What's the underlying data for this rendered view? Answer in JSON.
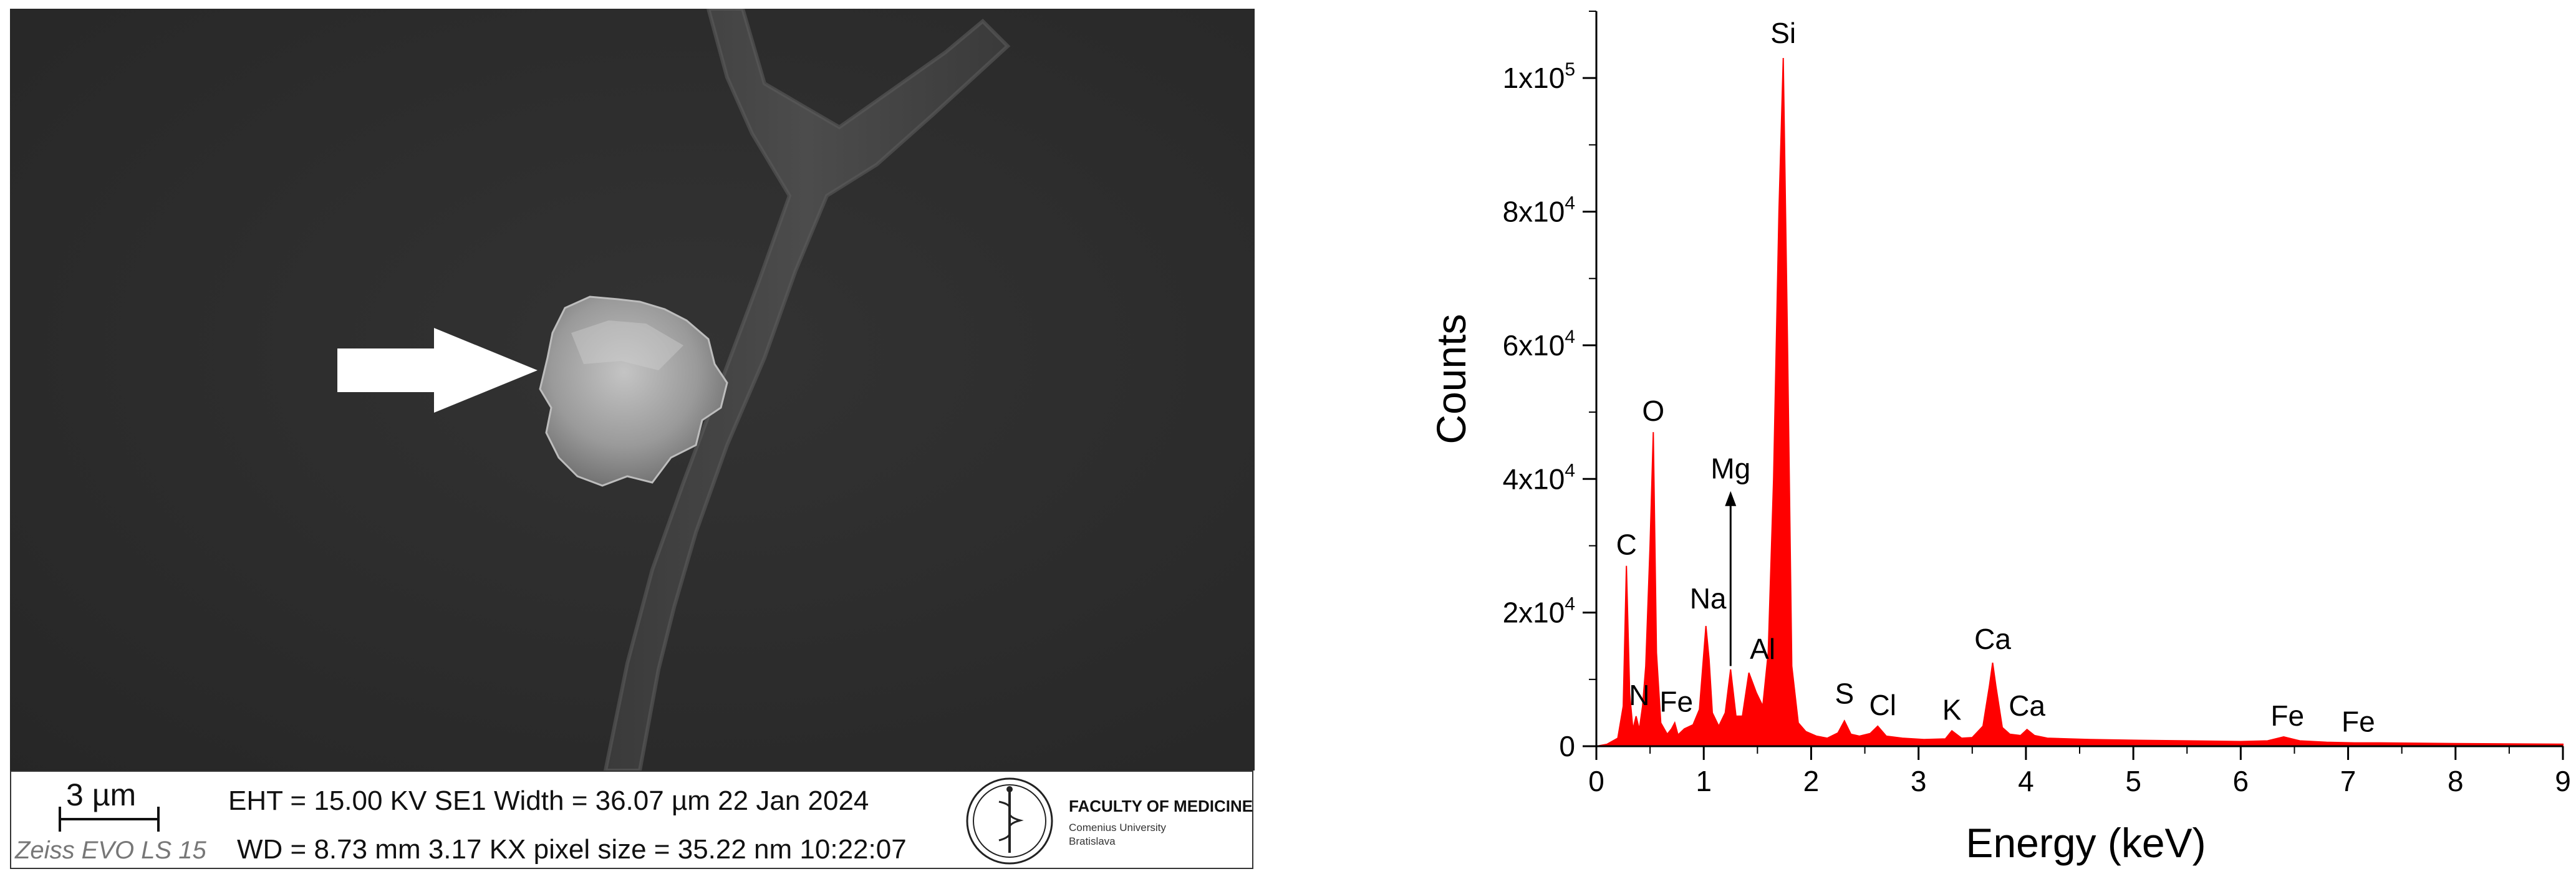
{
  "sem": {
    "scale_bar_label": "3 µm",
    "instrument": "Zeiss EVO LS 15",
    "info_line_1": "EHT = 15.00 KV   SE1  Width = 36.07 µm  22 Jan 2024",
    "info_line_2": "WD = 8.73 mm 3.17 KX pixel size = 35.22 nm 10:22:07",
    "faculty": "FACULTY OF MEDICINE",
    "faculty_sub_1": "Comenius University",
    "faculty_sub_2": "Bratislava",
    "colors": {
      "background": "#2c2c2c",
      "particle": "#a9a9a9",
      "fiber": "#555555",
      "arrow": "#ffffff"
    }
  },
  "chart_data": {
    "type": "area",
    "xlabel": "Energy (keV)",
    "ylabel": "Counts",
    "xlim": [
      0,
      9
    ],
    "ylim": [
      0,
      110000
    ],
    "xticks": [
      0,
      1,
      2,
      3,
      4,
      5,
      6,
      7,
      8,
      9
    ],
    "yticks": [
      {
        "value": 0,
        "label": "0"
      },
      {
        "value": 20000,
        "label": "2x10",
        "exp": "4"
      },
      {
        "value": 40000,
        "label": "4x10",
        "exp": "4"
      },
      {
        "value": 60000,
        "label": "6x10",
        "exp": "4"
      },
      {
        "value": 80000,
        "label": "8x10",
        "exp": "4"
      },
      {
        "value": 100000,
        "label": "1x10",
        "exp": "5"
      }
    ],
    "grid": false,
    "fill_color": "#ff0000",
    "series": [
      {
        "x": [
          0.0,
          0.1,
          0.2,
          0.25,
          0.28,
          0.31,
          0.34,
          0.37,
          0.4,
          0.43,
          0.46,
          0.5,
          0.53,
          0.56,
          0.6,
          0.66,
          0.7,
          0.73,
          0.76,
          0.82,
          0.9,
          0.96,
          1.02,
          1.05,
          1.08,
          1.14,
          1.2,
          1.25,
          1.3,
          1.36,
          1.42,
          1.49,
          1.55,
          1.6,
          1.65,
          1.7,
          1.74,
          1.78,
          1.82,
          1.88,
          1.95,
          2.05,
          2.15,
          2.25,
          2.31,
          2.37,
          2.45,
          2.55,
          2.62,
          2.7,
          2.85,
          3.05,
          3.25,
          3.31,
          3.4,
          3.5,
          3.6,
          3.66,
          3.69,
          3.72,
          3.78,
          3.85,
          3.95,
          4.01,
          4.08,
          4.2,
          4.4,
          4.6,
          5.0,
          5.5,
          6.0,
          6.25,
          6.4,
          6.55,
          6.8,
          7.06,
          7.3,
          8.0,
          8.5,
          9.0
        ],
        "y": [
          0,
          300,
          1200,
          6000,
          27000,
          8000,
          2500,
          4500,
          2500,
          6000,
          12000,
          30000,
          47000,
          14000,
          3500,
          1800,
          2600,
          3500,
          1700,
          2600,
          3200,
          5500,
          18000,
          13000,
          5000,
          3000,
          5000,
          11500,
          4500,
          4500,
          11000,
          8000,
          6000,
          14000,
          40000,
          80000,
          103000,
          60000,
          12000,
          3500,
          2200,
          1500,
          1200,
          2000,
          3800,
          1800,
          1500,
          1900,
          3000,
          1500,
          1200,
          1000,
          1100,
          2300,
          1200,
          1300,
          3000,
          9000,
          12500,
          9000,
          2800,
          1800,
          1600,
          2500,
          1600,
          1200,
          1100,
          1000,
          900,
          800,
          700,
          800,
          1400,
          800,
          600,
          500,
          500,
          400,
          350,
          300
        ]
      }
    ],
    "peak_labels": [
      {
        "label": "Si",
        "x": 1.74,
        "y": 103000
      },
      {
        "label": "O",
        "x": 0.53,
        "y": 47000
      },
      {
        "label": "C",
        "x": 0.28,
        "y": 27000
      },
      {
        "label": "N",
        "x": 0.4,
        "y": 4500
      },
      {
        "label": "Fe",
        "x": 0.71,
        "y": 3500
      },
      {
        "label": "Na",
        "x": 1.04,
        "y": 18000
      },
      {
        "label": "Mg",
        "x": 1.25,
        "y": 38000,
        "arrow_from": 12000
      },
      {
        "label": "Al",
        "x": 1.49,
        "y": 11000
      },
      {
        "label": "S",
        "x": 2.31,
        "y": 3800
      },
      {
        "label": "Cl",
        "x": 2.62,
        "y": 3000
      },
      {
        "label": "K",
        "x": 3.31,
        "y": 2300
      },
      {
        "label": "Ca",
        "x": 3.69,
        "y": 12500
      },
      {
        "label": "Ca",
        "x": 4.01,
        "y": 2500
      },
      {
        "label": "Fe",
        "x": 6.4,
        "y": 1400
      },
      {
        "label": "Fe",
        "x": 7.06,
        "y": 500
      }
    ]
  }
}
